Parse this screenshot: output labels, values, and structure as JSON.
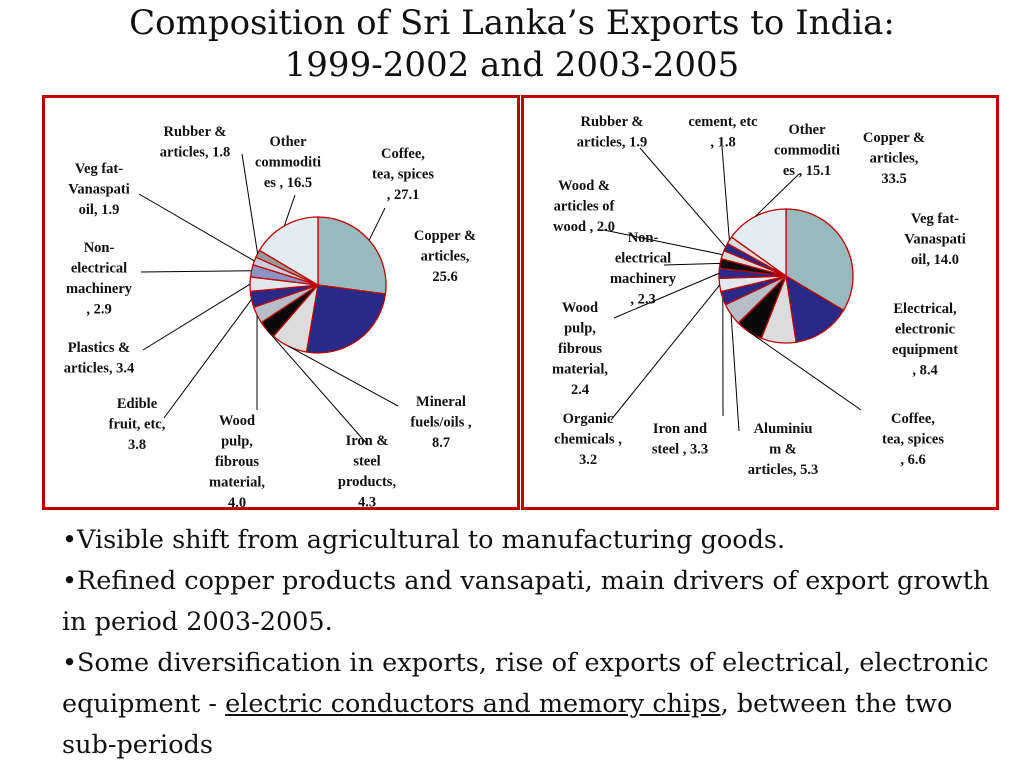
{
  "title": {
    "line1": "Composition of Sri Lanka’s Exports to India:",
    "line2": "1999-2002 and 2003-2005"
  },
  "colors": {
    "border": "#c00000",
    "slice_edge": "#c00000",
    "leader": "#000000"
  },
  "chart_data": [
    {
      "type": "pie",
      "period": "1999-2002",
      "slices": [
        {
          "label": "Coffee, tea, spices , 27.1",
          "value": 27.1,
          "color": "#98b9bd"
        },
        {
          "label": "Copper & articles, 25.6",
          "value": 25.6,
          "color": "#29298a"
        },
        {
          "label": "Mineral fuels/oils , 8.7",
          "value": 8.7,
          "color": "#dcdcdc"
        },
        {
          "label": "Iron & steel products, 4.3",
          "value": 4.3,
          "color": "#0a0a0a"
        },
        {
          "label": "Wood pulp, fibrous material, 4.0",
          "value": 4.0,
          "color": "#b6bfc9"
        },
        {
          "label": "Edible fruit, etc, 3.8",
          "value": 3.8,
          "color": "#29298a"
        },
        {
          "label": "Plastics & articles, 3.4",
          "value": 3.4,
          "color": "#e3e8ef"
        },
        {
          "label": "Non-electrical machinery , 2.9",
          "value": 2.9,
          "color": "#8d93c2"
        },
        {
          "label": "Veg fat-Vanaspati oil, 1.9",
          "value": 1.9,
          "color": "#c9cfe2"
        },
        {
          "label": "Rubber & articles, 1.8",
          "value": 1.8,
          "color": "#9a9a9a"
        },
        {
          "label": "Other commodities , 16.5",
          "value": 16.5,
          "color": "#e2ecf1"
        }
      ]
    },
    {
      "type": "pie",
      "period": "2003-2005",
      "slices": [
        {
          "label": "Copper & articles, 33.5",
          "value": 33.5,
          "color": "#98b9bd"
        },
        {
          "label": "Veg fat-Vanaspati oil, 14.0",
          "value": 14.0,
          "color": "#29298a"
        },
        {
          "label": "Electrical, electronic equipment , 8.4",
          "value": 8.4,
          "color": "#dcdcdc"
        },
        {
          "label": "Coffee, tea, spices , 6.6",
          "value": 6.6,
          "color": "#0a0a0a"
        },
        {
          "label": "Aluminium & articles, 5.3",
          "value": 5.3,
          "color": "#b6bfc9"
        },
        {
          "label": "Iron and steel , 3.3",
          "value": 3.3,
          "color": "#29298a"
        },
        {
          "label": "Organic chemicals , 3.2",
          "value": 3.2,
          "color": "#e3e8ef"
        },
        {
          "label": "Wood pulp, fibrous material, 2.4",
          "value": 2.4,
          "color": "#29298a"
        },
        {
          "label": "Non-electrical machinery , 2.3",
          "value": 2.3,
          "color": "#0a0a0a"
        },
        {
          "label": "Wood & articles of wood , 2.0",
          "value": 2.0,
          "color": "#dcdcdc"
        },
        {
          "label": "Rubber & articles, 1.9",
          "value": 1.9,
          "color": "#29298a"
        },
        {
          "label": "cement, etc , 1.8",
          "value": 1.8,
          "color": "#dcdcdc"
        },
        {
          "label": "Other commodities , 15.1",
          "value": 15.1,
          "color": "#e2ecf1"
        }
      ]
    }
  ],
  "chart1_labels": [
    {
      "name": "label-coffee-tea-spices",
      "lines": [
        "Coffee,",
        "tea, spices",
        ", 27.1"
      ]
    },
    {
      "name": "label-copper-articles",
      "lines": [
        "Copper &",
        "articles,",
        "25.6"
      ]
    },
    {
      "name": "label-mineral-fuels",
      "lines": [
        "Mineral",
        "fuels/oils ,",
        "8.7"
      ]
    },
    {
      "name": "label-iron-steel-products",
      "lines": [
        "Iron &",
        "steel",
        "products,",
        "4.3"
      ]
    },
    {
      "name": "label-wood-pulp",
      "lines": [
        "Wood",
        "pulp,",
        "fibrous",
        "material,",
        "4.0"
      ]
    },
    {
      "name": "label-edible-fruit",
      "lines": [
        "Edible",
        "fruit, etc,",
        "3.8"
      ]
    },
    {
      "name": "label-plastics",
      "lines": [
        "Plastics &",
        "articles, 3.4"
      ]
    },
    {
      "name": "label-non-electrical-machinery",
      "lines": [
        "Non-",
        "electrical",
        "machinery",
        ", 2.9"
      ]
    },
    {
      "name": "label-veg-fat",
      "lines": [
        "Veg fat-",
        "Vanaspati",
        "oil, 1.9"
      ]
    },
    {
      "name": "label-rubber",
      "lines": [
        "Rubber &",
        "articles, 1.8"
      ]
    },
    {
      "name": "label-other-commodities",
      "lines": [
        "Other",
        "commoditi",
        "es , 16.5"
      ]
    }
  ],
  "chart2_labels": [
    {
      "name": "label-copper-articles",
      "lines": [
        "Copper &",
        "articles,",
        "33.5"
      ]
    },
    {
      "name": "label-veg-fat",
      "lines": [
        "Veg fat-",
        "Vanaspati",
        "oil, 14.0"
      ]
    },
    {
      "name": "label-electrical-equipment",
      "lines": [
        "Electrical,",
        "electronic",
        "equipment",
        ", 8.4"
      ]
    },
    {
      "name": "label-coffee-tea-spices",
      "lines": [
        "Coffee,",
        "tea, spices",
        ", 6.6"
      ]
    },
    {
      "name": "label-aluminium",
      "lines": [
        "Aluminiu",
        "m &",
        "articles, 5.3"
      ]
    },
    {
      "name": "label-iron-steel",
      "lines": [
        "Iron and",
        "steel , 3.3"
      ]
    },
    {
      "name": "label-organic-chemicals",
      "lines": [
        "Organic",
        "chemicals ,",
        "3.2"
      ]
    },
    {
      "name": "label-wood-pulp",
      "lines": [
        "Wood",
        "pulp,",
        "fibrous",
        "material,",
        "2.4"
      ]
    },
    {
      "name": "label-non-electrical-machinery",
      "lines": [
        "Non-",
        "electrical",
        "machinery",
        ", 2.3"
      ]
    },
    {
      "name": "label-wood-articles",
      "lines": [
        "Wood &",
        "articles of",
        "wood , 2.0"
      ]
    },
    {
      "name": "label-rubber",
      "lines": [
        "Rubber &",
        "articles, 1.9"
      ]
    },
    {
      "name": "label-cement",
      "lines": [
        "cement, etc",
        ", 1.8"
      ]
    },
    {
      "name": "label-other-commodities",
      "lines": [
        "Other",
        "commoditi",
        "es , 15.1"
      ]
    }
  ],
  "bullets": {
    "b1": "•Visible shift from agricultural to manufacturing goods.",
    "b2": "•Refined copper products and vansapati, main drivers of export growth in period 2003-2005.",
    "b3_pre": "•Some diversification in exports, rise of exports of electrical, electronic equipment - ",
    "b3_link": "electric conductors and memory chips",
    "b3_post": ", between the two sub-periods"
  }
}
